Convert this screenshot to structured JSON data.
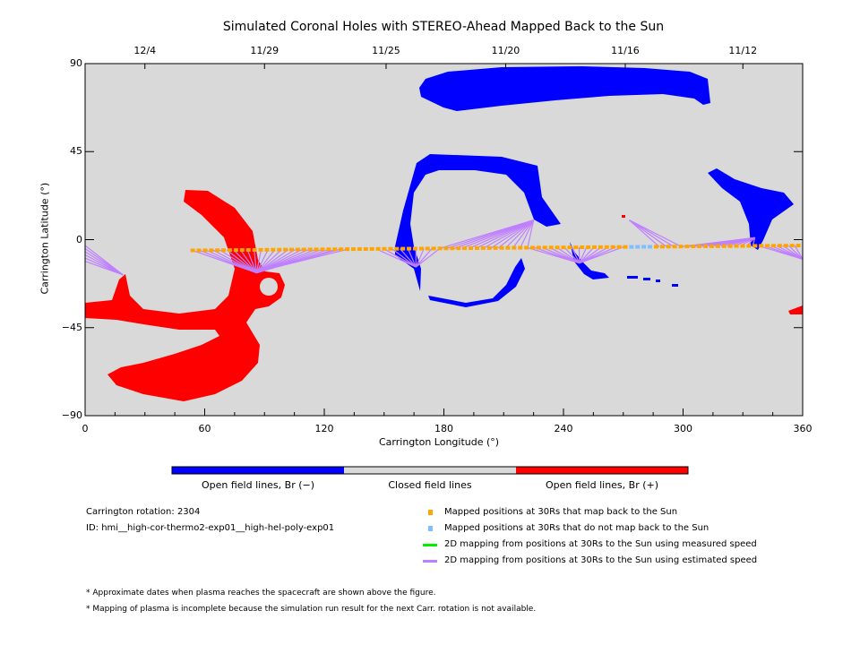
{
  "chart_data": {
    "type": "scatter",
    "title": "Simulated Coronal Holes with STEREO-Ahead Mapped Back to the Sun",
    "xlabel": "Carrington Longitude (°)",
    "ylabel": "Carrington Latitude (°)",
    "xlim": [
      0,
      360
    ],
    "ylim": [
      -90,
      90
    ],
    "x_ticks": [
      "0",
      "60",
      "120",
      "180",
      "240",
      "300",
      "360"
    ],
    "y_ticks": [
      "90",
      "45",
      "0",
      "−45",
      "−90"
    ],
    "top_date_labels": [
      {
        "label": "12/4",
        "lon": 30
      },
      {
        "label": "11/29",
        "lon": 90
      },
      {
        "label": "11/25",
        "lon": 151
      },
      {
        "label": "11/20",
        "lon": 211
      },
      {
        "label": "11/16",
        "lon": 271
      },
      {
        "label": "11/12",
        "lon": 330
      }
    ],
    "track": {
      "lon_start": 54,
      "lon_end": 360,
      "step": 3.1,
      "lat_start": -5.5,
      "lat_end": -3,
      "unmapped_lon_range": [
        271,
        286
      ]
    },
    "mapping_groups": [
      {
        "foot": [
          19,
          -18
        ],
        "lon_range": [
          0,
          0
        ],
        "lat_range": [
          -3,
          -11
        ],
        "count": 6
      },
      {
        "foot": [
          86,
          -17
        ],
        "lon_range": [
          54,
          126
        ],
        "count": 22
      },
      {
        "foot": [
          96,
          -14
        ],
        "lon_range": [
          128,
          132
        ],
        "count": 2
      },
      {
        "foot": [
          166,
          -14
        ],
        "lon_range": [
          146,
          178
        ],
        "count": 9
      },
      {
        "foot": [
          225,
          10
        ],
        "lon_range": [
          178,
          222
        ],
        "count": 13
      },
      {
        "foot": [
          248,
          -12
        ],
        "lon_range": [
          222,
          270
        ],
        "count": 14
      },
      {
        "foot": [
          273,
          10
        ],
        "lon_range": [
          288,
          299
        ],
        "count": 4
      },
      {
        "foot": [
          336,
          1
        ],
        "lon_range": [
          300,
          335
        ],
        "count": 12
      },
      {
        "foot": [
          360,
          -10
        ],
        "lon_range": [
          338,
          356
        ],
        "count": 7
      }
    ],
    "colorbar": [
      {
        "label": "Open field lines, Br (−)",
        "color": "#0000ff"
      },
      {
        "label": "Closed field lines",
        "color": "#d9d9d9"
      },
      {
        "label": "Open field lines, Br (+)",
        "color": "#ff0000"
      }
    ],
    "legend": [
      {
        "label": "Mapped positions at 30Rs that map back to the Sun",
        "color": "#ffa500",
        "kind": "square"
      },
      {
        "label": "Mapped positions at 30Rs that do not map back to the Sun",
        "color": "#7fbfff",
        "kind": "square"
      },
      {
        "label": "2D mapping from positions at 30Rs to the Sun using measured speed",
        "color": "#00ee00",
        "kind": "line"
      },
      {
        "label": "2D mapping from positions at 30Rs to the Sun using estimated speed",
        "color": "#bf7fff",
        "kind": "line"
      }
    ]
  },
  "info": {
    "rotation": "Carrington rotation: 2304",
    "id": "ID: hmi__high-cor-thermo2-exp01__high-hel-poly-exp01"
  },
  "notes": [
    "* Approximate dates when plasma reaches the spacecraft are shown above the figure.",
    "* Mapping of plasma is incomplete because the simulation run result for the next Carr. rotation is not available."
  ]
}
